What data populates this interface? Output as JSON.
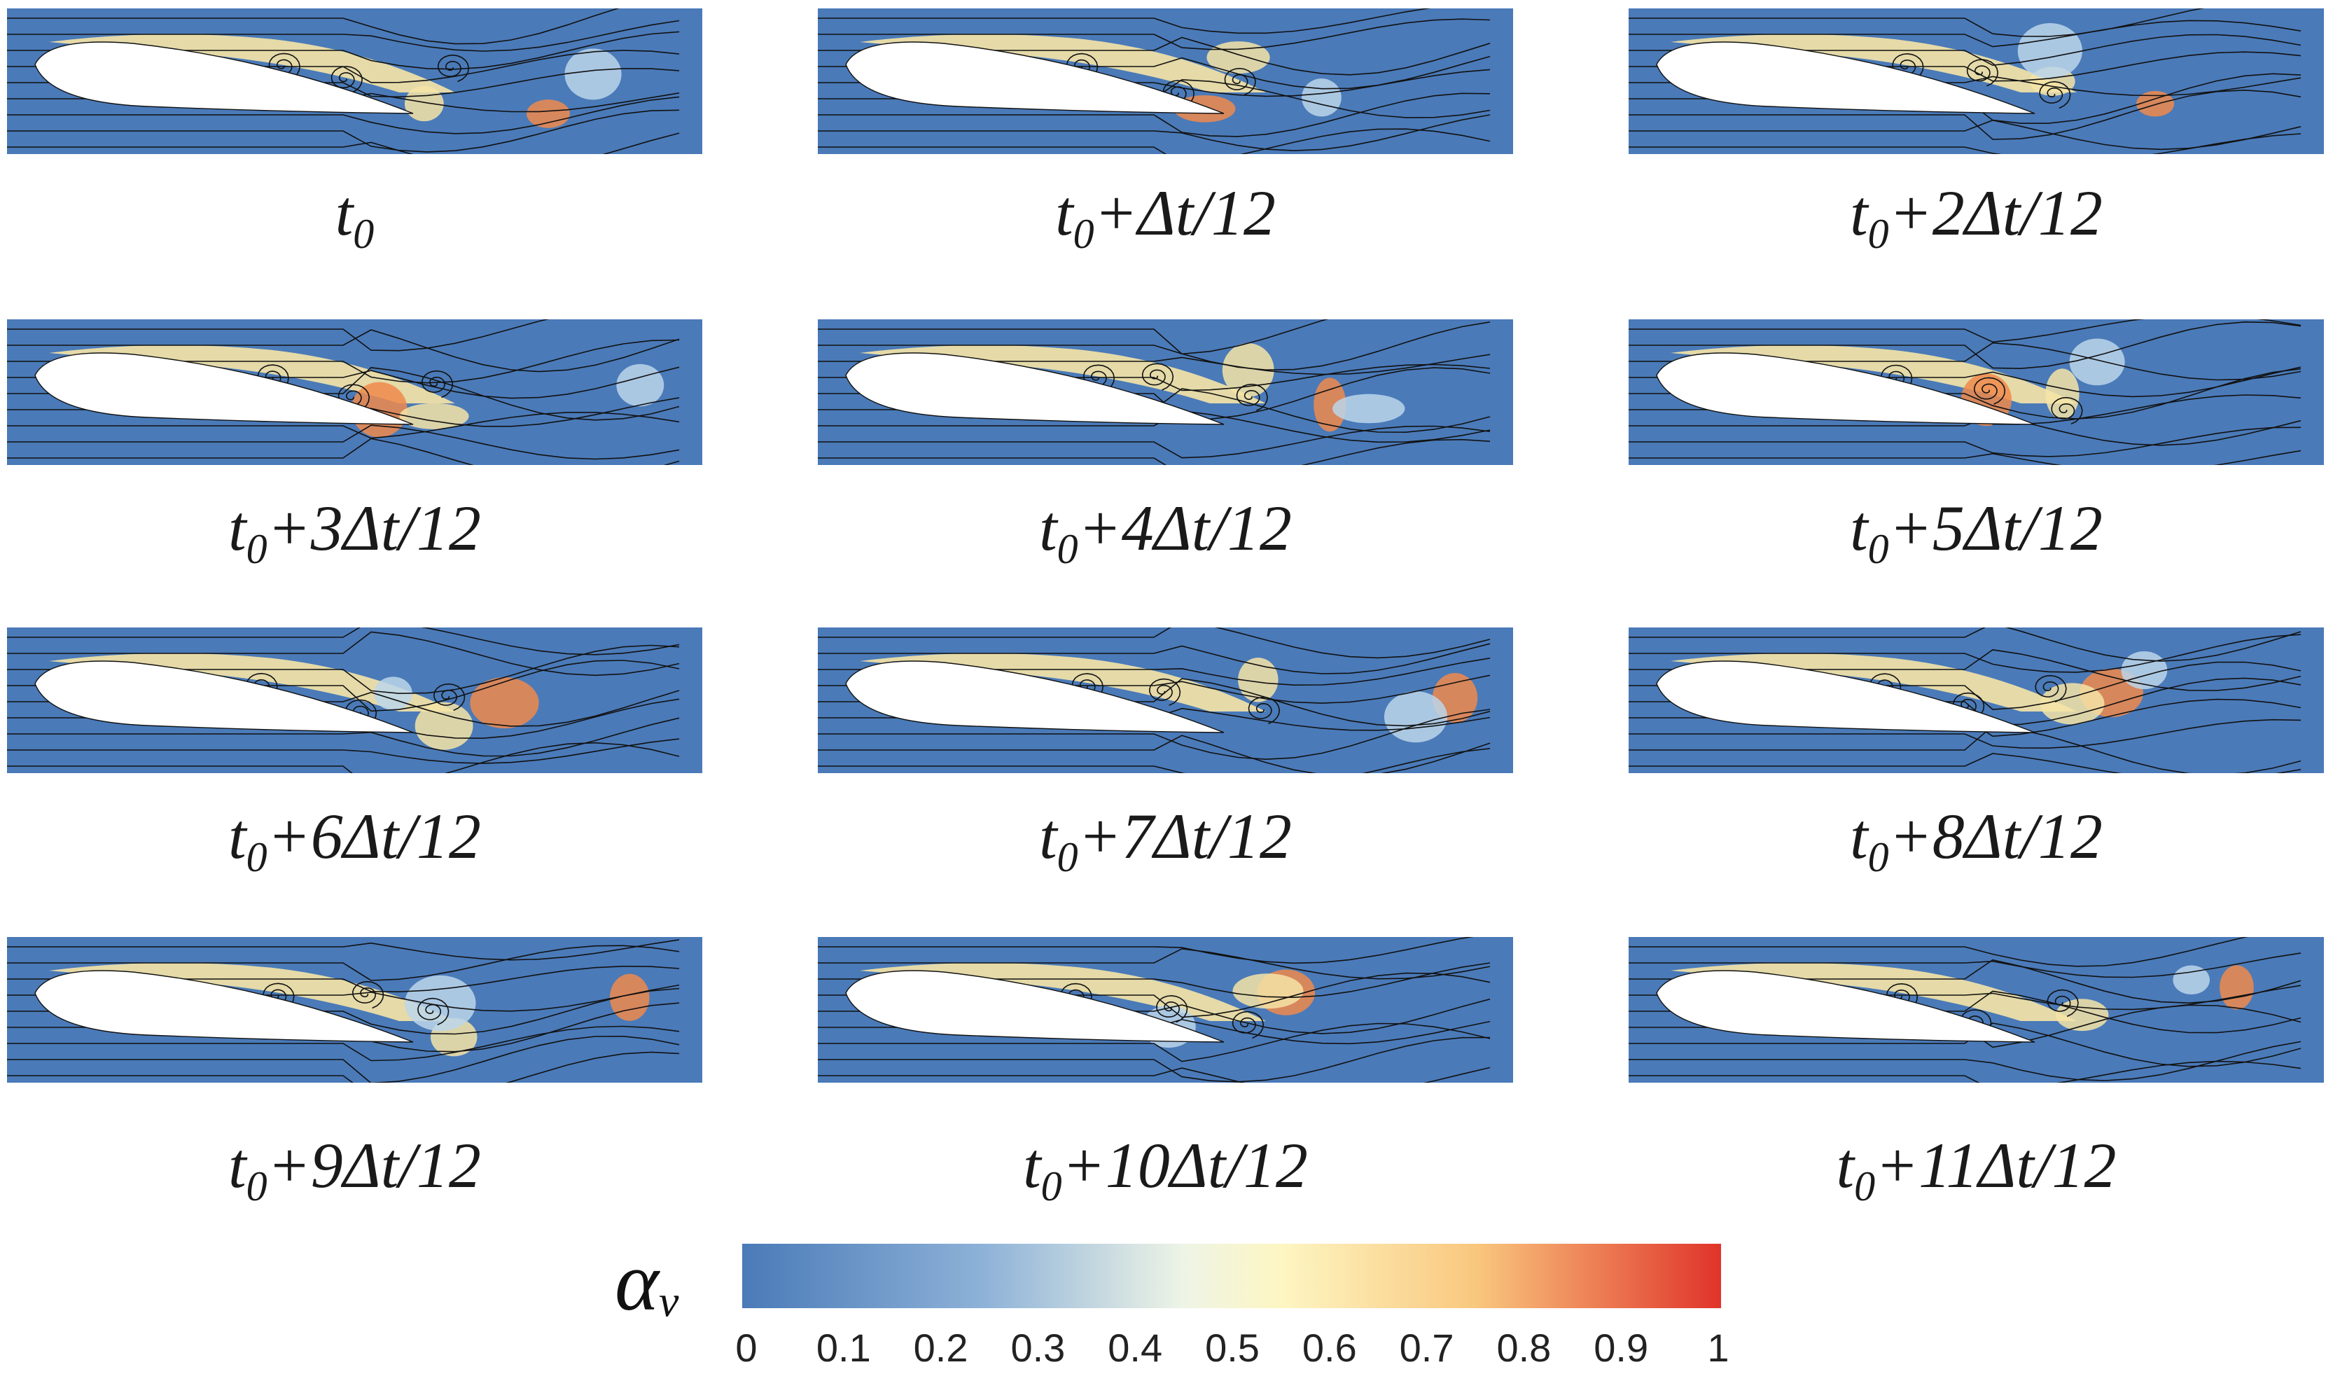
{
  "panels": [
    {
      "t": "0",
      "rest": ""
    },
    {
      "t": "0",
      "rest": "+Δt/12"
    },
    {
      "t": "0",
      "rest": "+2Δt/12"
    },
    {
      "t": "0",
      "rest": "+3Δt/12"
    },
    {
      "t": "0",
      "rest": "+4Δt/12"
    },
    {
      "t": "0",
      "rest": "+5Δt/12"
    },
    {
      "t": "0",
      "rest": "+6Δt/12"
    },
    {
      "t": "0",
      "rest": "+7Δt/12"
    },
    {
      "t": "0",
      "rest": "+8Δt/12"
    },
    {
      "t": "0",
      "rest": "+9Δt/12"
    },
    {
      "t": "0",
      "rest": "+10Δt/12"
    },
    {
      "t": "0",
      "rest": "+11Δt/12"
    }
  ],
  "colorbar": {
    "symbol": "α",
    "symbol_sub": "v",
    "ticks": [
      "0",
      "0.1",
      "0.2",
      "0.3",
      "0.4",
      "0.5",
      "0.6",
      "0.7",
      "0.8",
      "0.9",
      "1"
    ],
    "colors": [
      "#4a7ab8",
      "#8fb3d8",
      "#fdf6c3",
      "#f9c77e",
      "#e0332a"
    ]
  },
  "colors": {
    "background_field": "#4a7ab8",
    "vapor_low": "#bcd6ea",
    "vapor_mid": "#f6e4a6",
    "vapor_high": "#f08a4b",
    "hydrofoil": "#ffffff",
    "streamline": "#111111"
  }
}
